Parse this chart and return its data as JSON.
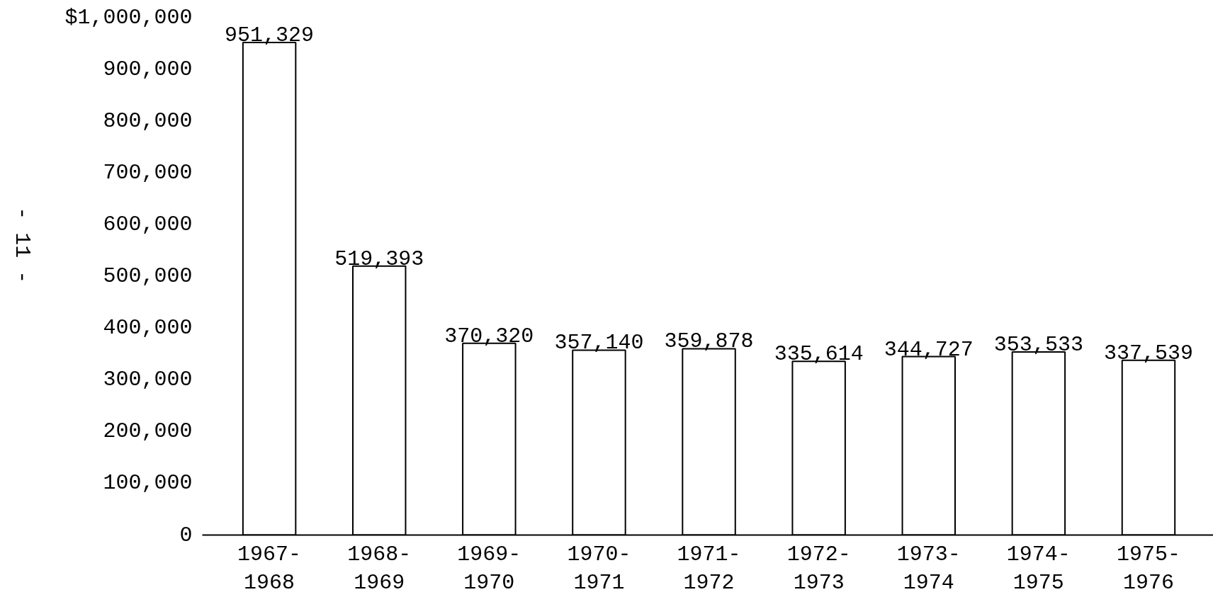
{
  "chart_data": {
    "type": "bar",
    "categories": [
      "1967-\n1968",
      "1968-\n1969",
      "1969-\n1970",
      "1970-\n1971",
      "1971-\n1972",
      "1972-\n1973",
      "1973-\n1974",
      "1974-\n1975",
      "1975-\n1976"
    ],
    "values": [
      951329,
      519393,
      370320,
      357140,
      359878,
      335614,
      344727,
      353533,
      337539
    ],
    "value_labels": [
      "951,329",
      "519,393",
      "370,320",
      "357,140",
      "359,878",
      "335,614",
      "344,727",
      "353,533",
      "337,539"
    ],
    "color": "#ffffff",
    "ylim": [
      0,
      1000000
    ],
    "yticks": [
      0,
      {
        "value": 100000,
        "label": "100,000"
      },
      {
        "value": 200000,
        "label": "200,000"
      },
      {
        "value": 300000,
        "label": "300,000"
      },
      {
        "value": 400000,
        "label": "400,000"
      },
      {
        "value": 500000,
        "label": "500,000"
      },
      {
        "value": 600000,
        "label": "600,000"
      },
      {
        "value": 700000,
        "label": "700,000"
      },
      {
        "value": 800000,
        "label": "800,000"
      },
      {
        "value": 900000,
        "label": "900,000"
      },
      {
        "value": 1000000,
        "label": "$1,000,000"
      }
    ],
    "grid": false,
    "annotations": [
      "- 11 -"
    ]
  }
}
